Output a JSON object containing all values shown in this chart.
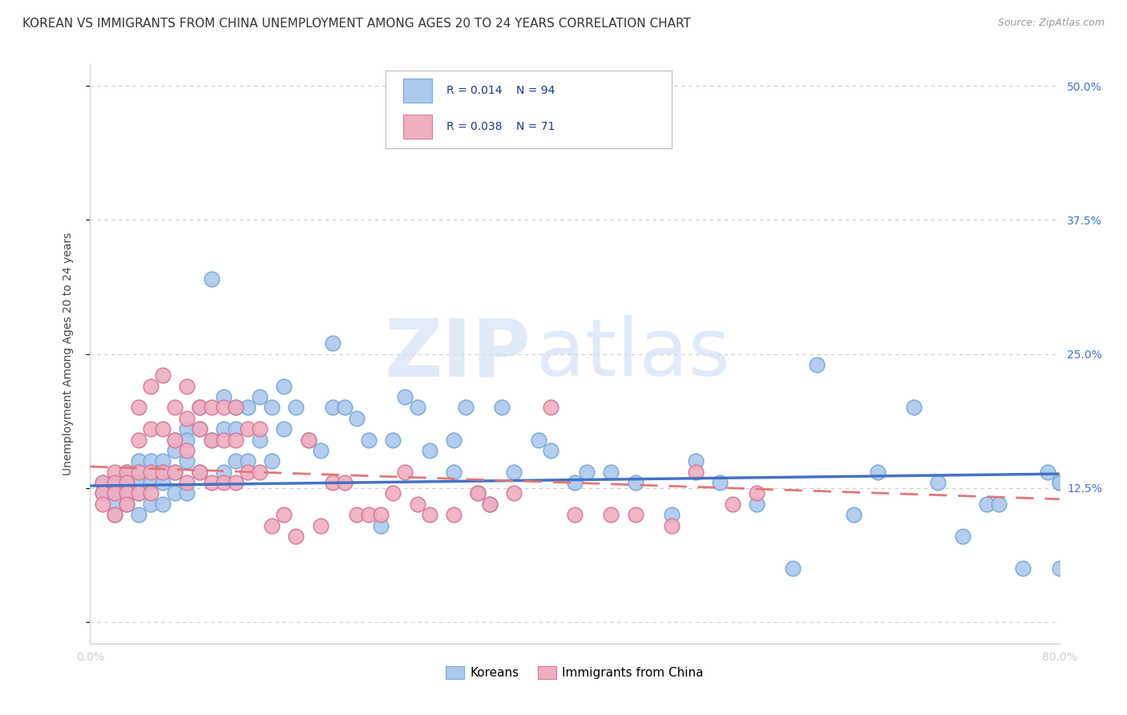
{
  "title": "KOREAN VS IMMIGRANTS FROM CHINA UNEMPLOYMENT AMONG AGES 20 TO 24 YEARS CORRELATION CHART",
  "source": "Source: ZipAtlas.com",
  "ylabel": "Unemployment Among Ages 20 to 24 years",
  "legend_label1": "Koreans",
  "legend_label2": "Immigrants from China",
  "legend_r1": "R = 0.014",
  "legend_n1": "N = 94",
  "legend_r2": "R = 0.038",
  "legend_n2": "N = 71",
  "color_korean": "#adc9ee",
  "color_china": "#f0afc0",
  "color_korean_edge": "#7aaad4",
  "color_china_edge": "#d47a9a",
  "trend_color_korean": "#4472c4",
  "trend_color_china": "#e07878",
  "background_color": "#ffffff",
  "grid_color": "#cccccc",
  "xlim": [
    0.0,
    0.8
  ],
  "ylim": [
    -0.02,
    0.52
  ],
  "yticks": [
    0.0,
    0.125,
    0.25,
    0.375,
    0.5
  ],
  "right_ytick_labels": [
    "12.5%",
    "25.0%",
    "37.5%",
    "50.0%"
  ],
  "right_ytick_vals": [
    0.125,
    0.25,
    0.375,
    0.5
  ],
  "xticks": [
    0.0,
    0.1,
    0.2,
    0.3,
    0.4,
    0.5,
    0.6,
    0.7,
    0.8
  ],
  "xtick_labels": [
    "0.0%",
    "",
    "",
    "",
    "",
    "",
    "",
    "",
    "80.0%"
  ],
  "korean_x": [
    0.01,
    0.01,
    0.02,
    0.02,
    0.02,
    0.02,
    0.03,
    0.03,
    0.03,
    0.03,
    0.04,
    0.04,
    0.04,
    0.04,
    0.04,
    0.05,
    0.05,
    0.05,
    0.05,
    0.06,
    0.06,
    0.06,
    0.06,
    0.07,
    0.07,
    0.07,
    0.07,
    0.08,
    0.08,
    0.08,
    0.08,
    0.09,
    0.09,
    0.09,
    0.1,
    0.1,
    0.11,
    0.11,
    0.11,
    0.12,
    0.12,
    0.12,
    0.13,
    0.13,
    0.14,
    0.14,
    0.15,
    0.15,
    0.16,
    0.16,
    0.17,
    0.18,
    0.19,
    0.2,
    0.2,
    0.21,
    0.22,
    0.23,
    0.24,
    0.25,
    0.26,
    0.27,
    0.28,
    0.3,
    0.3,
    0.31,
    0.32,
    0.33,
    0.34,
    0.35,
    0.37,
    0.38,
    0.4,
    0.41,
    0.43,
    0.45,
    0.48,
    0.5,
    0.52,
    0.55,
    0.58,
    0.6,
    0.63,
    0.65,
    0.68,
    0.7,
    0.72,
    0.74,
    0.75,
    0.77,
    0.79,
    0.8,
    0.8,
    0.8
  ],
  "korean_y": [
    0.13,
    0.12,
    0.13,
    0.12,
    0.11,
    0.1,
    0.14,
    0.13,
    0.12,
    0.11,
    0.15,
    0.14,
    0.13,
    0.12,
    0.1,
    0.15,
    0.14,
    0.13,
    0.11,
    0.15,
    0.14,
    0.13,
    0.11,
    0.17,
    0.16,
    0.14,
    0.12,
    0.18,
    0.17,
    0.15,
    0.12,
    0.2,
    0.18,
    0.14,
    0.32,
    0.17,
    0.21,
    0.18,
    0.14,
    0.2,
    0.18,
    0.15,
    0.2,
    0.15,
    0.21,
    0.17,
    0.2,
    0.15,
    0.22,
    0.18,
    0.2,
    0.17,
    0.16,
    0.26,
    0.2,
    0.2,
    0.19,
    0.17,
    0.09,
    0.17,
    0.21,
    0.2,
    0.16,
    0.17,
    0.14,
    0.2,
    0.12,
    0.11,
    0.2,
    0.14,
    0.17,
    0.16,
    0.13,
    0.14,
    0.14,
    0.13,
    0.1,
    0.15,
    0.13,
    0.11,
    0.05,
    0.24,
    0.1,
    0.14,
    0.2,
    0.13,
    0.08,
    0.11,
    0.11,
    0.05,
    0.14,
    0.05,
    0.13,
    0.13
  ],
  "china_x": [
    0.01,
    0.01,
    0.01,
    0.02,
    0.02,
    0.02,
    0.02,
    0.03,
    0.03,
    0.03,
    0.03,
    0.04,
    0.04,
    0.04,
    0.04,
    0.05,
    0.05,
    0.05,
    0.05,
    0.06,
    0.06,
    0.06,
    0.07,
    0.07,
    0.07,
    0.08,
    0.08,
    0.08,
    0.08,
    0.09,
    0.09,
    0.09,
    0.1,
    0.1,
    0.1,
    0.11,
    0.11,
    0.11,
    0.12,
    0.12,
    0.12,
    0.13,
    0.13,
    0.14,
    0.14,
    0.15,
    0.16,
    0.17,
    0.18,
    0.19,
    0.2,
    0.21,
    0.22,
    0.23,
    0.24,
    0.25,
    0.26,
    0.27,
    0.28,
    0.3,
    0.32,
    0.33,
    0.35,
    0.38,
    0.4,
    0.43,
    0.45,
    0.48,
    0.5,
    0.53,
    0.55
  ],
  "china_y": [
    0.13,
    0.12,
    0.11,
    0.14,
    0.13,
    0.12,
    0.1,
    0.14,
    0.13,
    0.12,
    0.11,
    0.2,
    0.17,
    0.14,
    0.12,
    0.22,
    0.18,
    0.14,
    0.12,
    0.23,
    0.18,
    0.14,
    0.2,
    0.17,
    0.14,
    0.22,
    0.19,
    0.16,
    0.13,
    0.2,
    0.18,
    0.14,
    0.2,
    0.17,
    0.13,
    0.2,
    0.17,
    0.13,
    0.2,
    0.17,
    0.13,
    0.18,
    0.14,
    0.18,
    0.14,
    0.09,
    0.1,
    0.08,
    0.17,
    0.09,
    0.13,
    0.13,
    0.1,
    0.1,
    0.1,
    0.12,
    0.14,
    0.11,
    0.1,
    0.1,
    0.12,
    0.11,
    0.12,
    0.2,
    0.1,
    0.1,
    0.1,
    0.09,
    0.14,
    0.11,
    0.12
  ],
  "watermark_zip": "ZIP",
  "watermark_atlas": "atlas",
  "title_fontsize": 11,
  "label_fontsize": 10,
  "tick_fontsize": 10,
  "right_tick_color": "#4472c4",
  "trend_korean_slope": 0.014,
  "trend_korean_intercept": 0.127,
  "trend_china_slope": -0.038,
  "trend_china_intercept": 0.145
}
